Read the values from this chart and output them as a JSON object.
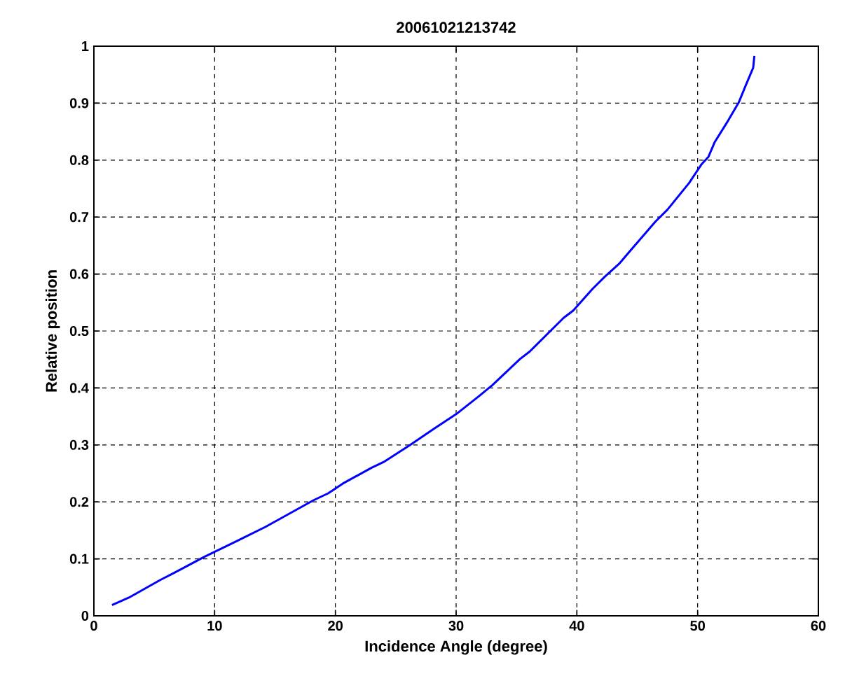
{
  "chart_data": {
    "type": "line",
    "title": "20061021213742",
    "xlabel": "Incidence Angle (degree)",
    "ylabel": "Relative position",
    "xlim": [
      0,
      60
    ],
    "xticks": [
      0,
      10,
      20,
      30,
      40,
      50,
      60
    ],
    "ylim": [
      0,
      1
    ],
    "yticks": [
      0,
      0.1,
      0.2,
      0.3,
      0.4,
      0.5,
      0.6,
      0.7,
      0.8,
      0.9,
      1
    ],
    "grid": true,
    "line_style": "solid",
    "marker": "none",
    "series": [
      {
        "color": "#0000ff",
        "x": [
          1.5,
          2.9,
          5.5,
          6.7,
          9.1,
          11.9,
          14.2,
          18.2,
          19.4,
          20.6,
          23.0,
          24.0,
          26.2,
          28.2,
          30.0,
          31.8,
          33.0,
          35.3,
          36.1,
          38.9,
          39.7,
          41.3,
          42.3,
          43.5,
          44.3,
          46.5,
          47.5,
          49.3,
          50.3,
          50.9,
          51.4,
          52.4,
          53.4,
          54.0,
          54.6,
          54.7
        ],
        "values": [
          0.019,
          0.032,
          0.063,
          0.076,
          0.103,
          0.132,
          0.156,
          0.203,
          0.215,
          0.232,
          0.26,
          0.27,
          0.3,
          0.329,
          0.354,
          0.384,
          0.405,
          0.451,
          0.464,
          0.523,
          0.536,
          0.574,
          0.595,
          0.618,
          0.638,
          0.692,
          0.713,
          0.76,
          0.792,
          0.806,
          0.831,
          0.865,
          0.901,
          0.932,
          0.962,
          0.983
        ]
      }
    ]
  }
}
